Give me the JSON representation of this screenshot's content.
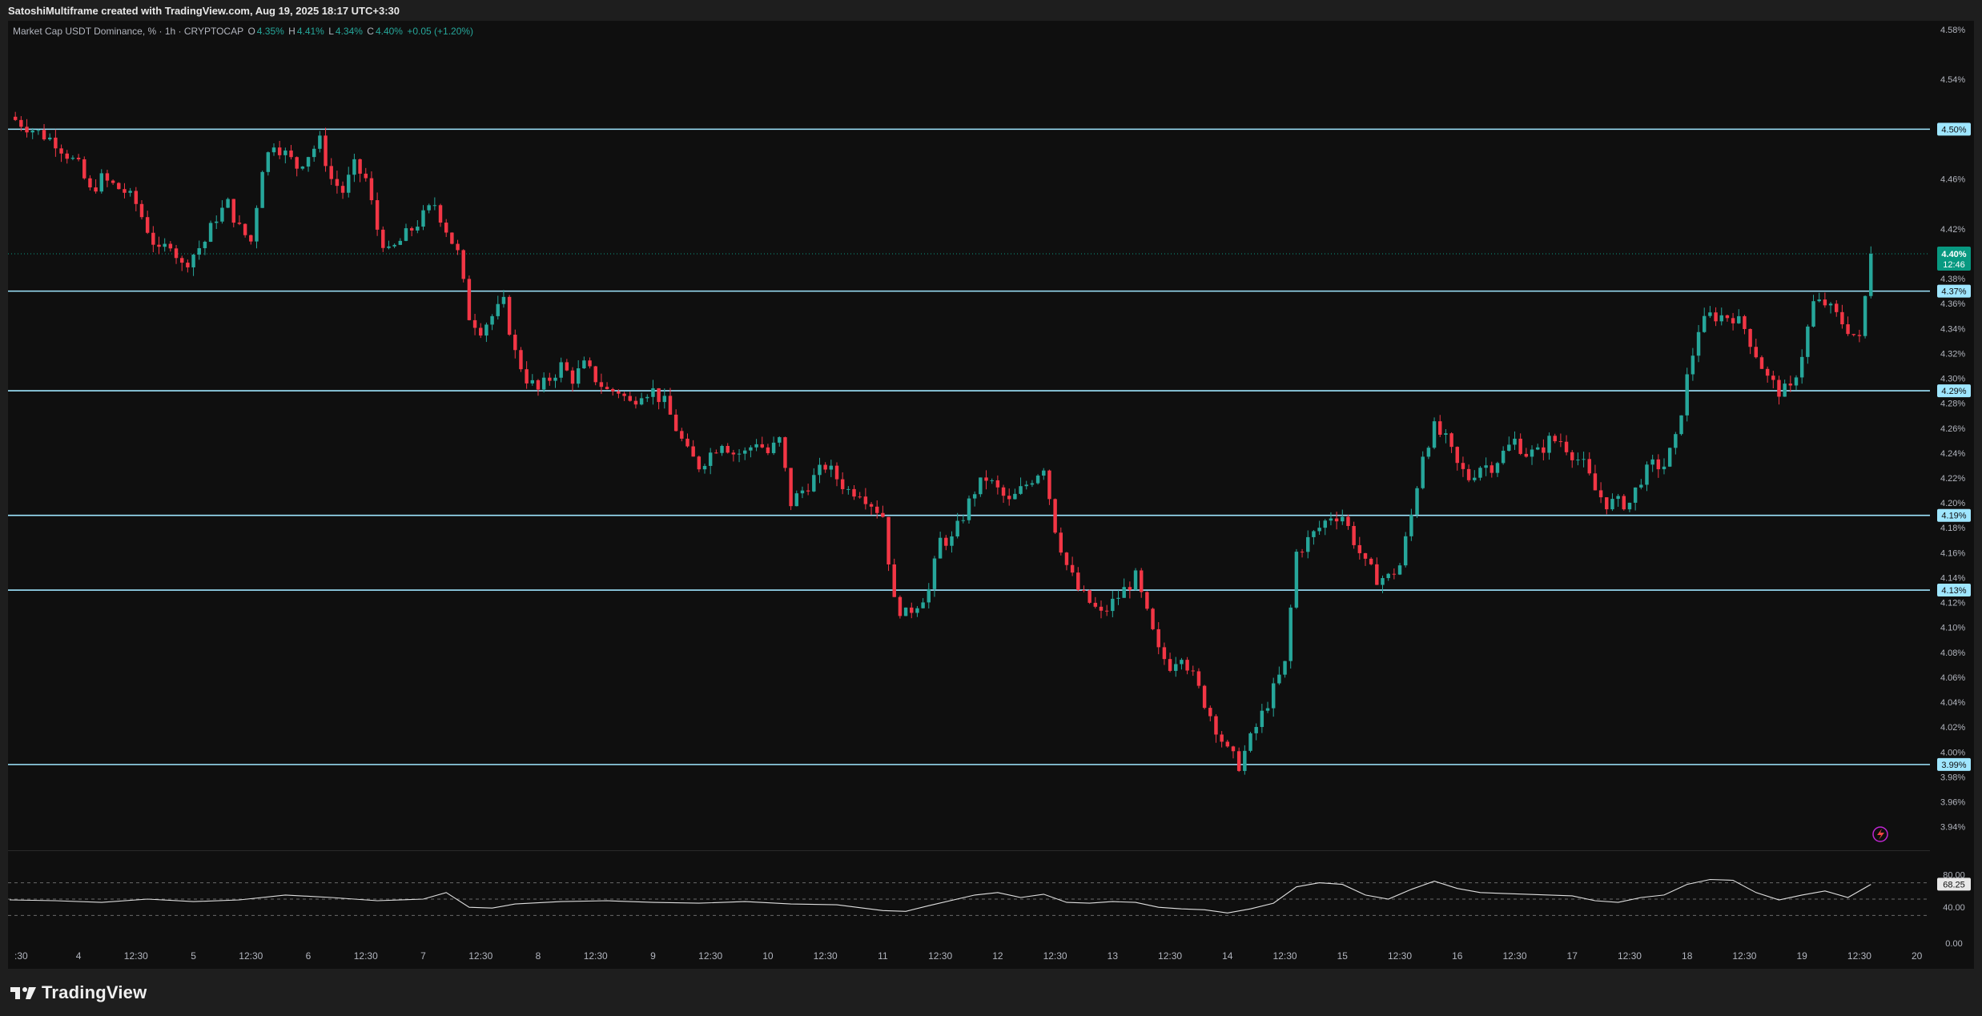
{
  "header": {
    "caption": "SatoshiMultiframe created with TradingView.com, Aug 19, 2025 18:17 UTC+3:30"
  },
  "legend": {
    "symbol": "Market Cap USDT Dominance, % · 1h · CRYPTOCAP",
    "o_label": "O",
    "o_value": "4.35%",
    "h_label": "H",
    "h_value": "4.41%",
    "l_label": "L",
    "l_value": "4.34%",
    "c_label": "C",
    "c_value": "4.40%",
    "change": "+0.05 (+1.20%)"
  },
  "footer": {
    "brand": "TradingView"
  },
  "colors": {
    "up": "#26a69a",
    "down": "#f23645",
    "hline": "#9fe6ff",
    "rsi_line": "#e0e0e0",
    "price_badge": "#089981"
  },
  "chart_data": {
    "type": "candlestick",
    "title": "Market Cap USDT Dominance, % · 1h · CRYPTOCAP",
    "y_axis": {
      "ylim": [
        3.925,
        4.587
      ],
      "ticks": [
        "4.58%",
        "4.54%",
        "4.50%",
        "4.46%",
        "4.42%",
        "4.38%",
        "4.36%",
        "4.34%",
        "4.32%",
        "4.30%",
        "4.28%",
        "4.26%",
        "4.24%",
        "4.22%",
        "4.20%",
        "4.18%",
        "4.16%",
        "4.14%",
        "4.12%",
        "4.10%",
        "4.08%",
        "4.06%",
        "4.04%",
        "4.02%",
        "4.00%",
        "3.98%",
        "3.96%",
        "3.94%"
      ]
    },
    "x_axis": {
      "labels": [
        ":30",
        "4",
        "12:30",
        "5",
        "12:30",
        "6",
        "12:30",
        "7",
        "12:30",
        "8",
        "12:30",
        "9",
        "12:30",
        "10",
        "12:30",
        "11",
        "12:30",
        "12",
        "12:30",
        "13",
        "12:30",
        "14",
        "12:30",
        "15",
        "12:30",
        "16",
        "12:30",
        "17",
        "12:30",
        "18",
        "12:30",
        "19",
        "12:30",
        "20"
      ],
      "label_positions": [
        0.5,
        3,
        5.5,
        8,
        10.5,
        13,
        15.5,
        18,
        20.5,
        23,
        25.5,
        28,
        30.5,
        33,
        35.5,
        38,
        40.5,
        43,
        45.5,
        48,
        50.5,
        53,
        55.5,
        58,
        60.5,
        63,
        65.5,
        68,
        70.5,
        73,
        75.5,
        78,
        80.5,
        83
      ]
    },
    "horizontal_levels": [
      {
        "value": 4.5,
        "label": "4.50%"
      },
      {
        "value": 4.37,
        "label": "4.37%"
      },
      {
        "value": 4.29,
        "label": "4.29%"
      },
      {
        "value": 4.19,
        "label": "4.19%"
      },
      {
        "value": 4.13,
        "label": "4.13%"
      },
      {
        "value": 3.99,
        "label": "3.99%"
      }
    ],
    "current_price": {
      "value": 4.4,
      "label": "4.40%",
      "countdown": "12:46"
    },
    "close_path": [
      [
        0,
        4.51
      ],
      [
        1,
        4.5
      ],
      [
        2,
        4.49
      ],
      [
        3,
        4.47
      ],
      [
        3.5,
        4.45
      ],
      [
        4,
        4.46
      ],
      [
        5,
        4.45
      ],
      [
        5.5,
        4.44
      ],
      [
        6,
        4.42
      ],
      [
        6.5,
        4.4
      ],
      [
        7,
        4.41
      ],
      [
        7.5,
        4.39
      ],
      [
        8,
        4.4
      ],
      [
        8.5,
        4.41
      ],
      [
        9,
        4.43
      ],
      [
        9.5,
        4.44
      ],
      [
        10,
        4.42
      ],
      [
        10.5,
        4.41
      ],
      [
        11,
        4.47
      ],
      [
        11.5,
        4.49
      ],
      [
        12,
        4.48
      ],
      [
        12.5,
        4.47
      ],
      [
        13,
        4.48
      ],
      [
        13.5,
        4.49
      ],
      [
        14,
        4.46
      ],
      [
        14.5,
        4.45
      ],
      [
        15,
        4.47
      ],
      [
        15.5,
        4.46
      ],
      [
        16,
        4.42
      ],
      [
        16.5,
        4.4
      ],
      [
        17,
        4.41
      ],
      [
        17.5,
        4.42
      ],
      [
        18,
        4.43
      ],
      [
        18.5,
        4.44
      ],
      [
        19,
        4.42
      ],
      [
        19.5,
        4.4
      ],
      [
        20,
        4.35
      ],
      [
        20.5,
        4.34
      ],
      [
        21,
        4.35
      ],
      [
        21.5,
        4.36
      ],
      [
        22,
        4.32
      ],
      [
        22.5,
        4.3
      ],
      [
        23,
        4.29
      ],
      [
        23.5,
        4.3
      ],
      [
        24,
        4.31
      ],
      [
        24.5,
        4.3
      ],
      [
        25,
        4.31
      ],
      [
        25.5,
        4.3
      ],
      [
        26,
        4.29
      ],
      [
        26.5,
        4.29
      ],
      [
        27,
        4.28
      ],
      [
        27.5,
        4.29
      ],
      [
        28,
        4.29
      ],
      [
        28.5,
        4.28
      ],
      [
        29,
        4.26
      ],
      [
        29.5,
        4.24
      ],
      [
        30,
        4.23
      ],
      [
        30.5,
        4.24
      ],
      [
        31,
        4.25
      ],
      [
        31.5,
        4.24
      ],
      [
        32,
        4.24
      ],
      [
        32.5,
        4.25
      ],
      [
        33,
        4.24
      ],
      [
        33.5,
        4.25
      ],
      [
        34,
        4.2
      ],
      [
        34.5,
        4.21
      ],
      [
        35,
        4.22
      ],
      [
        35.5,
        4.23
      ],
      [
        36,
        4.22
      ],
      [
        36.5,
        4.21
      ],
      [
        37,
        4.21
      ],
      [
        37.5,
        4.2
      ],
      [
        38,
        4.19
      ],
      [
        38.5,
        4.12
      ],
      [
        39,
        4.11
      ],
      [
        39.5,
        4.12
      ],
      [
        40,
        4.13
      ],
      [
        40.5,
        4.17
      ],
      [
        41,
        4.17
      ],
      [
        41.5,
        4.19
      ],
      [
        42,
        4.21
      ],
      [
        42.5,
        4.22
      ],
      [
        43,
        4.21
      ],
      [
        43.5,
        4.2
      ],
      [
        44,
        4.21
      ],
      [
        44.5,
        4.22
      ],
      [
        45,
        4.23
      ],
      [
        45.5,
        4.18
      ],
      [
        46,
        4.15
      ],
      [
        46.5,
        4.13
      ],
      [
        47,
        4.12
      ],
      [
        47.5,
        4.11
      ],
      [
        48,
        4.12
      ],
      [
        48.5,
        4.13
      ],
      [
        49,
        4.14
      ],
      [
        49.5,
        4.11
      ],
      [
        50,
        4.08
      ],
      [
        50.5,
        4.07
      ],
      [
        51,
        4.08
      ],
      [
        51.5,
        4.06
      ],
      [
        52,
        4.04
      ],
      [
        52.5,
        4.02
      ],
      [
        53,
        4.0
      ],
      [
        53.5,
        3.99
      ],
      [
        54,
        4.01
      ],
      [
        54.5,
        4.03
      ],
      [
        55,
        4.05
      ],
      [
        55.5,
        4.07
      ],
      [
        56,
        4.16
      ],
      [
        56.5,
        4.17
      ],
      [
        57,
        4.18
      ],
      [
        57.5,
        4.19
      ],
      [
        58,
        4.19
      ],
      [
        58.5,
        4.17
      ],
      [
        59,
        4.15
      ],
      [
        59.5,
        4.14
      ],
      [
        60,
        4.14
      ],
      [
        60.5,
        4.15
      ],
      [
        61,
        4.19
      ],
      [
        61.5,
        4.24
      ],
      [
        62,
        4.26
      ],
      [
        62.5,
        4.25
      ],
      [
        63,
        4.23
      ],
      [
        63.5,
        4.22
      ],
      [
        64,
        4.23
      ],
      [
        64.5,
        4.23
      ],
      [
        65,
        4.24
      ],
      [
        65.5,
        4.25
      ],
      [
        66,
        4.24
      ],
      [
        66.5,
        4.24
      ],
      [
        67,
        4.25
      ],
      [
        67.5,
        4.25
      ],
      [
        68,
        4.24
      ],
      [
        68.5,
        4.23
      ],
      [
        69,
        4.21
      ],
      [
        69.5,
        4.2
      ],
      [
        70,
        4.2
      ],
      [
        70.5,
        4.2
      ],
      [
        71,
        4.22
      ],
      [
        71.5,
        4.23
      ],
      [
        72,
        4.23
      ],
      [
        72.5,
        4.25
      ],
      [
        73,
        4.3
      ],
      [
        73.5,
        4.34
      ],
      [
        74,
        4.35
      ],
      [
        74.5,
        4.35
      ],
      [
        75,
        4.35
      ],
      [
        75.5,
        4.34
      ],
      [
        76,
        4.32
      ],
      [
        76.5,
        4.3
      ],
      [
        77,
        4.29
      ],
      [
        77.5,
        4.29
      ],
      [
        78,
        4.32
      ],
      [
        78.5,
        4.36
      ],
      [
        79,
        4.36
      ],
      [
        79.5,
        4.35
      ],
      [
        80,
        4.34
      ],
      [
        80.5,
        4.33
      ],
      [
        81,
        4.4
      ]
    ],
    "rsi": {
      "labels": [
        "80.00",
        "68.25",
        "40.00",
        "0.00"
      ],
      "current": 68.25,
      "path": [
        [
          0,
          49
        ],
        [
          2,
          48
        ],
        [
          4,
          46
        ],
        [
          6,
          50
        ],
        [
          8,
          47
        ],
        [
          10,
          49
        ],
        [
          12,
          55
        ],
        [
          14,
          52
        ],
        [
          16,
          48
        ],
        [
          18,
          50
        ],
        [
          19,
          58
        ],
        [
          20,
          40
        ],
        [
          21,
          39
        ],
        [
          22,
          44
        ],
        [
          24,
          47
        ],
        [
          26,
          48
        ],
        [
          28,
          46
        ],
        [
          30,
          45
        ],
        [
          32,
          47
        ],
        [
          34,
          44
        ],
        [
          36,
          43
        ],
        [
          38,
          36
        ],
        [
          39,
          35
        ],
        [
          40,
          42
        ],
        [
          42,
          55
        ],
        [
          43,
          58
        ],
        [
          44,
          52
        ],
        [
          45,
          56
        ],
        [
          46,
          46
        ],
        [
          47,
          45
        ],
        [
          48,
          47
        ],
        [
          49,
          46
        ],
        [
          50,
          40
        ],
        [
          51,
          38
        ],
        [
          52,
          37
        ],
        [
          53,
          33
        ],
        [
          54,
          38
        ],
        [
          55,
          45
        ],
        [
          56,
          65
        ],
        [
          57,
          70
        ],
        [
          58,
          68
        ],
        [
          59,
          55
        ],
        [
          60,
          50
        ],
        [
          61,
          62
        ],
        [
          62,
          72
        ],
        [
          63,
          63
        ],
        [
          64,
          58
        ],
        [
          65,
          57
        ],
        [
          66,
          56
        ],
        [
          67,
          55
        ],
        [
          68,
          54
        ],
        [
          69,
          48
        ],
        [
          70,
          46
        ],
        [
          71,
          52
        ],
        [
          72,
          55
        ],
        [
          73,
          68
        ],
        [
          74,
          74
        ],
        [
          75,
          73
        ],
        [
          76,
          58
        ],
        [
          77,
          49
        ],
        [
          78,
          55
        ],
        [
          79,
          60
        ],
        [
          80,
          52
        ],
        [
          81,
          68
        ]
      ]
    }
  }
}
